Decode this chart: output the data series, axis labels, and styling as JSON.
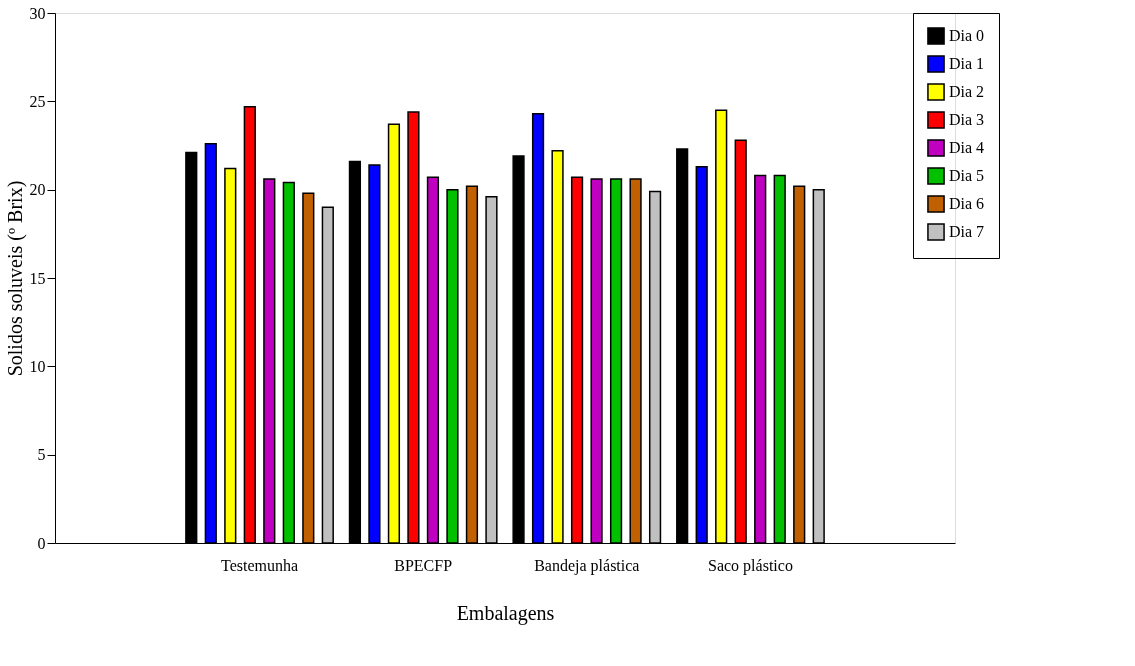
{
  "chart_data": {
    "type": "bar",
    "xlabel": "Embalagens",
    "ylabel": "Solidos soluveis (º Brix)",
    "categories": [
      "Testemunha",
      "BPECFP",
      "Bandeja plástica",
      "Saco plástico"
    ],
    "series": [
      {
        "name": "Dia 0",
        "color": "#000000",
        "values": [
          22.1,
          21.6,
          21.9,
          22.3
        ]
      },
      {
        "name": "Dia 1",
        "color": "#0000ff",
        "values": [
          22.6,
          21.4,
          24.3,
          21.3
        ]
      },
      {
        "name": "Dia 2",
        "color": "#ffff00",
        "values": [
          21.2,
          23.7,
          22.2,
          24.5
        ]
      },
      {
        "name": "Dia 3",
        "color": "#ff0000",
        "values": [
          24.7,
          24.4,
          20.7,
          22.8
        ]
      },
      {
        "name": "Dia 4",
        "color": "#c000c0",
        "values": [
          20.6,
          20.7,
          20.6,
          20.8
        ]
      },
      {
        "name": "Dia 5",
        "color": "#00c000",
        "values": [
          20.4,
          20.0,
          20.6,
          20.8
        ]
      },
      {
        "name": "Dia 6",
        "color": "#c06000",
        "values": [
          19.8,
          20.2,
          20.6,
          20.2
        ]
      },
      {
        "name": "Dia 7",
        "color": "#c0c0c0",
        "values": [
          19.0,
          19.6,
          19.9,
          20.0
        ]
      }
    ],
    "ylim": [
      0,
      30
    ],
    "yticks": [
      0,
      5,
      10,
      15,
      20,
      25,
      30
    ],
    "grid": false,
    "legend": "top right"
  }
}
